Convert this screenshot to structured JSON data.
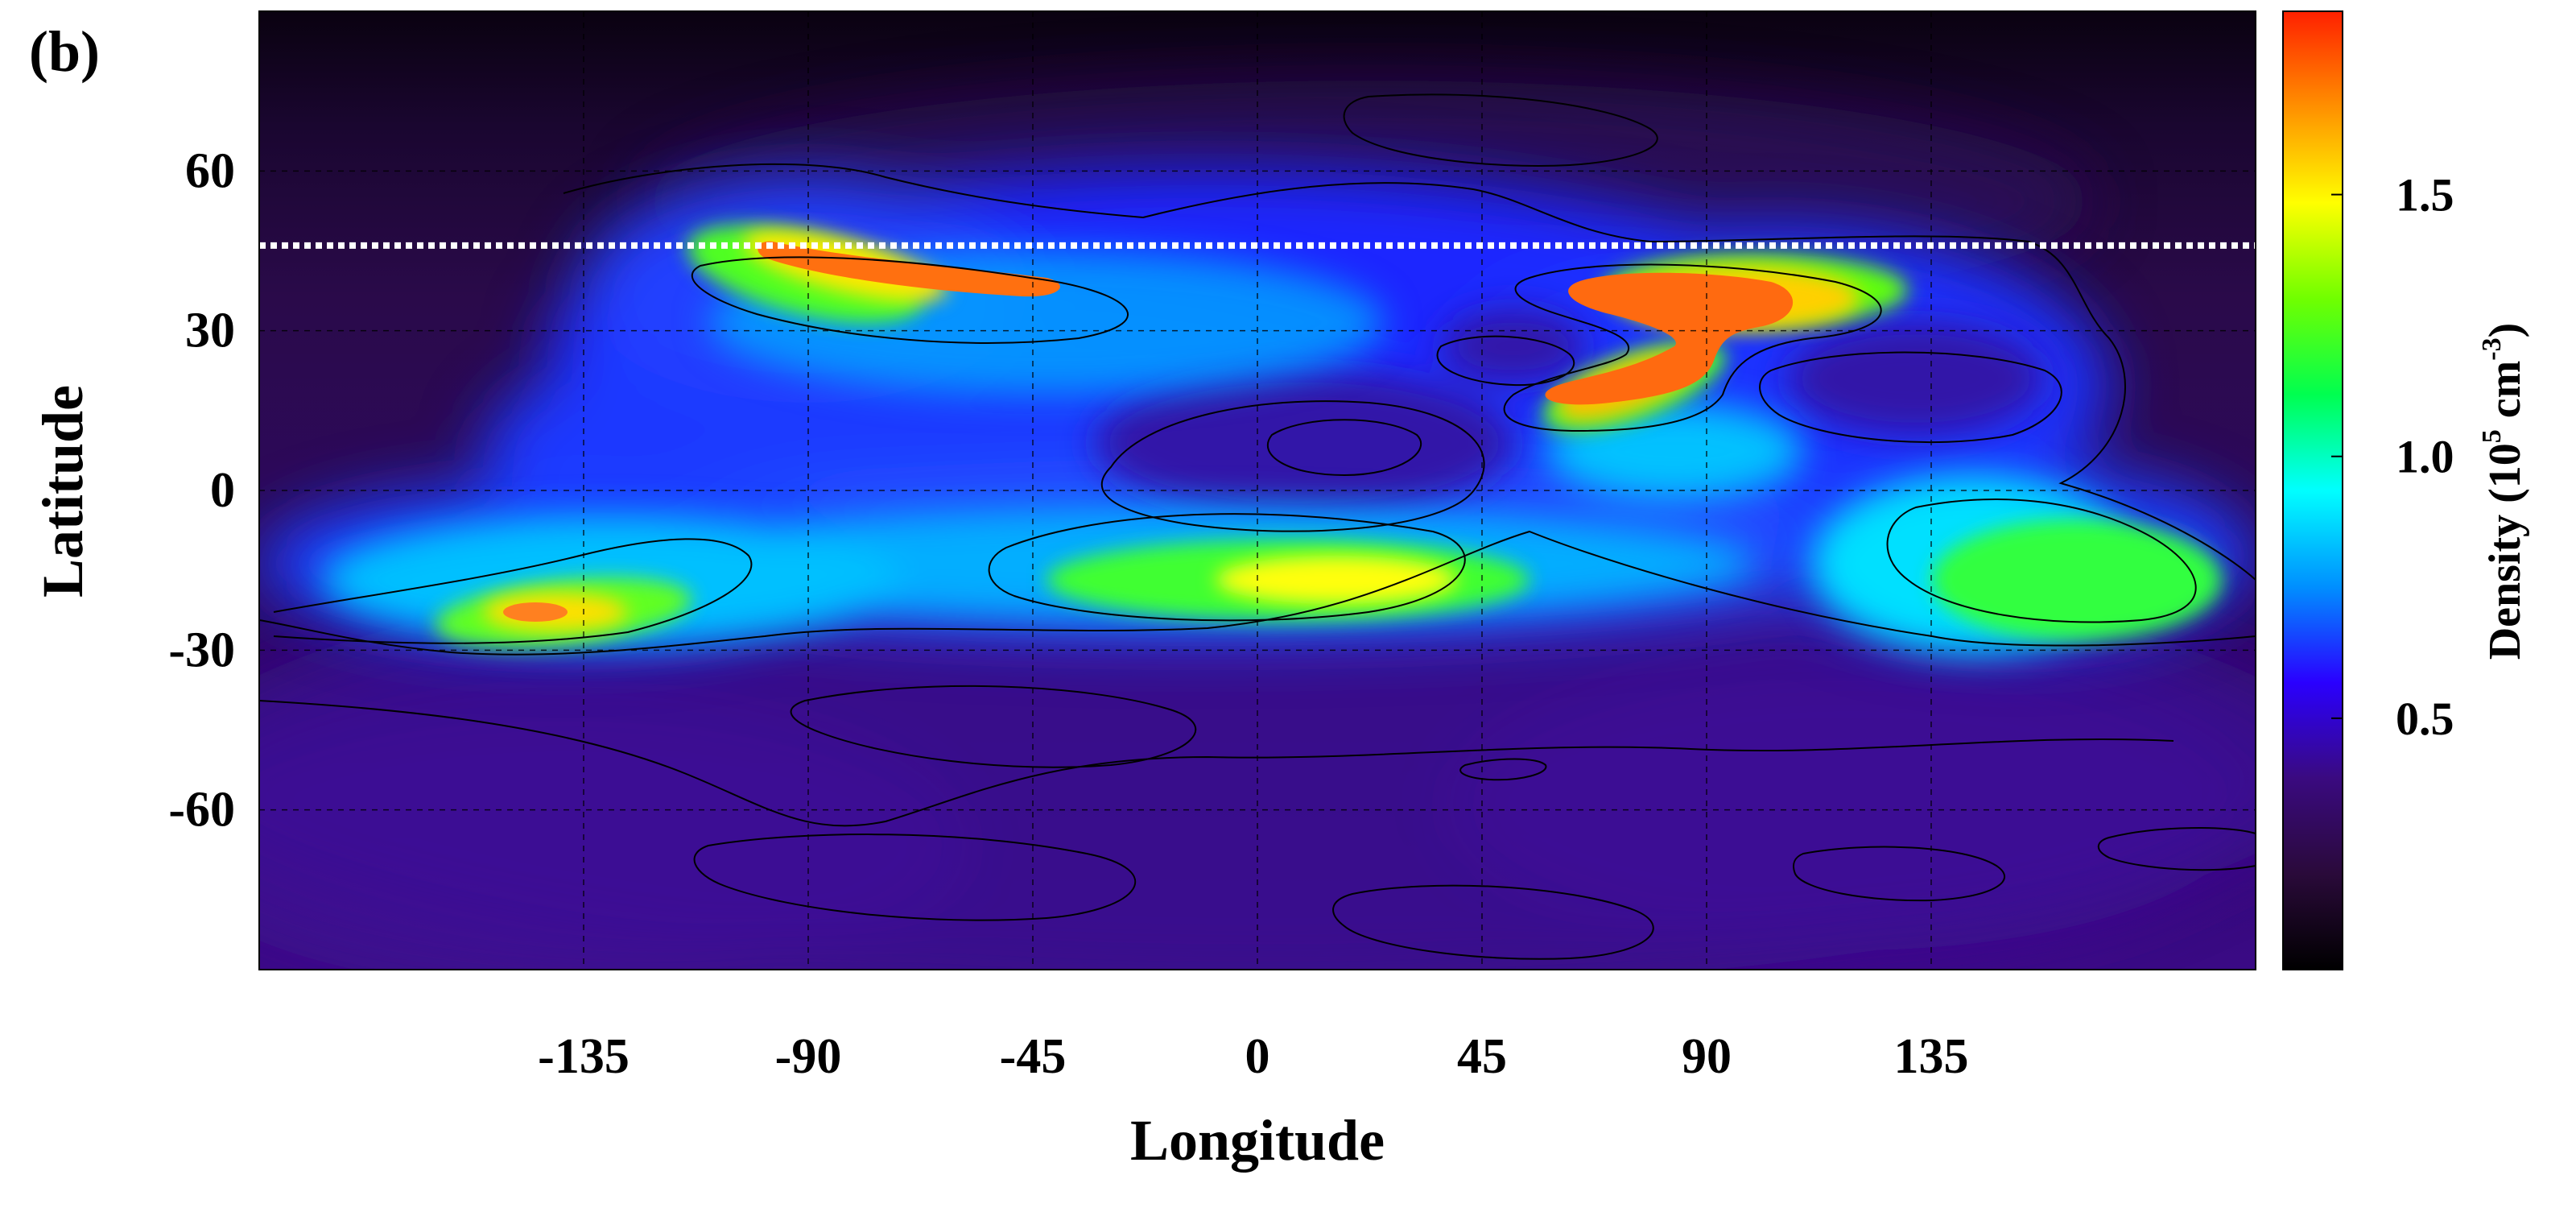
{
  "panel_label": "(b)",
  "chart_data": {
    "type": "heatmap",
    "title": "",
    "xlabel": "Longitude",
    "ylabel": "Latitude",
    "xlim": [
      -200,
      200
    ],
    "ylim": [
      -90,
      90
    ],
    "x_ticks": [
      -135,
      -90,
      -45,
      0,
      45,
      90,
      135
    ],
    "y_ticks": [
      60,
      30,
      0,
      -30,
      -60
    ],
    "grid": true,
    "grid_style": "dashed",
    "reference_line": {
      "latitude": 46,
      "style": "dotted",
      "color": "#ffffff"
    },
    "colorbar": {
      "label": "Density (10^5 cm^-3)",
      "label_base": "Density (10",
      "label_exp1": "5",
      "label_mid": " cm",
      "label_exp2": "-3",
      "label_end": ")",
      "range": [
        0.02,
        1.85
      ],
      "ticks": [
        0.5,
        1.0,
        1.5
      ],
      "tick_labels": [
        "0.5",
        "1.0",
        "1.5"
      ],
      "colors": [
        "#000000",
        "#2a0a3a",
        "#3a0a80",
        "#2a00ff",
        "#0090ff",
        "#00ffff",
        "#00ff50",
        "#70ff00",
        "#ffff00",
        "#ff9000",
        "#ff2000"
      ]
    },
    "background_value": 0.15,
    "features": [
      {
        "name": "north-arc-west",
        "lon": -65,
        "lat": 44,
        "value": 1.85
      },
      {
        "name": "north-arc-tail",
        "lon": -95,
        "lat": 53,
        "value": 1.2
      },
      {
        "name": "north-blob-east",
        "lon": 72,
        "lat": 35,
        "value": 1.85
      },
      {
        "name": "east-blob-tail",
        "lon": 55,
        "lat": 18,
        "value": 1.6
      },
      {
        "name": "south-band-west",
        "lon": -130,
        "lat": -21,
        "value": 1.75
      },
      {
        "name": "south-band-center",
        "lon": 5,
        "lat": -16,
        "value": 1.45
      },
      {
        "name": "south-band-east",
        "lon": 145,
        "lat": -14,
        "value": 1.25
      },
      {
        "name": "central-blue-region",
        "lon": -40,
        "lat": 20,
        "value": 0.65
      },
      {
        "name": "low-trough",
        "lon": 15,
        "lat": 10,
        "value": 0.25
      }
    ]
  }
}
